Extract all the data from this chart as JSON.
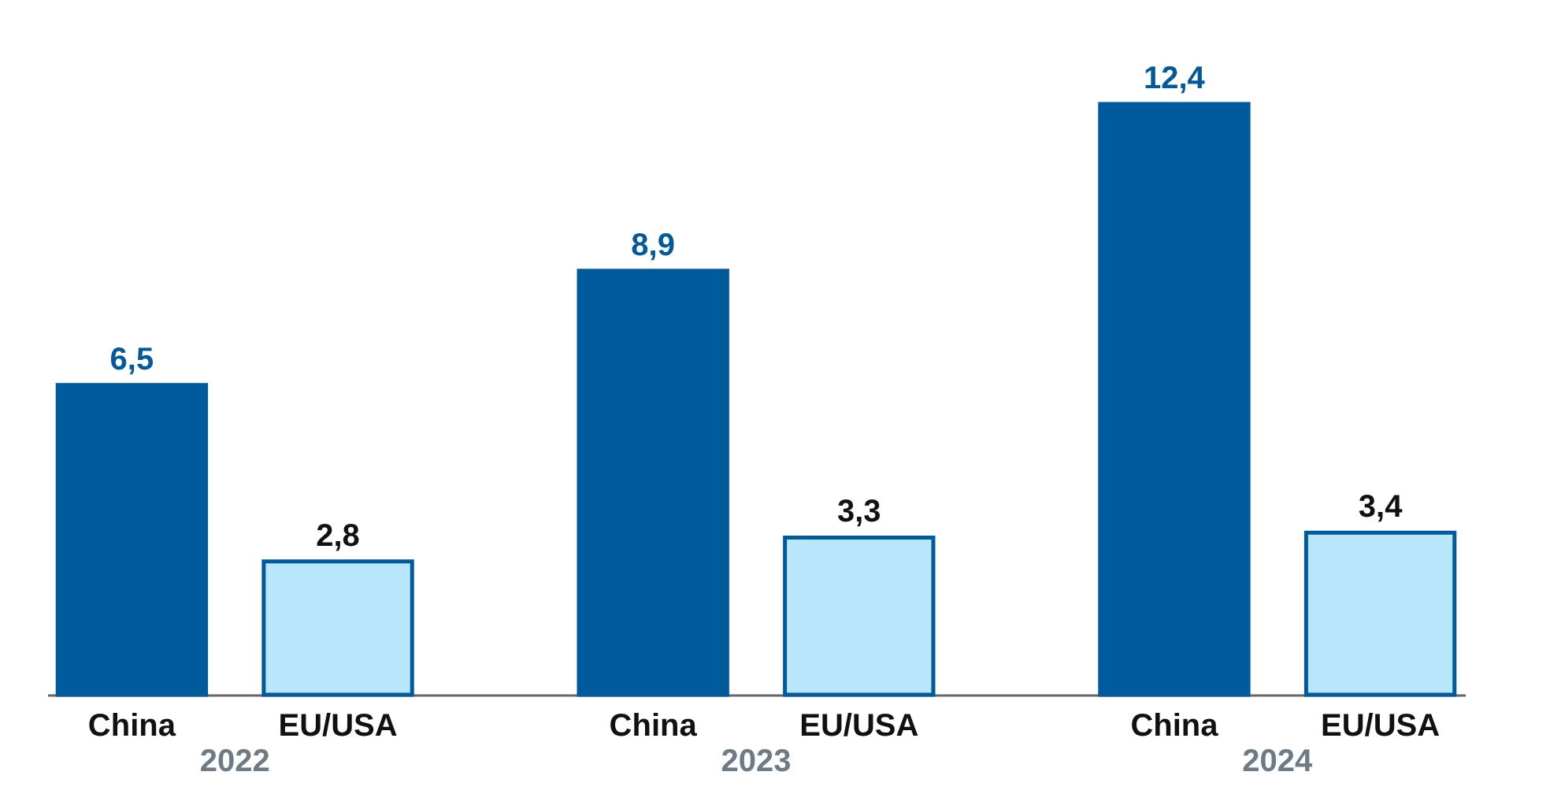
{
  "chart_data": {
    "type": "bar",
    "categories": [
      "2022",
      "2023",
      "2024"
    ],
    "series": [
      {
        "name": "China",
        "color": "#005a9c",
        "values": [
          6.5,
          8.9,
          12.4
        ],
        "value_labels": [
          "6,5",
          "8,9",
          "12,4"
        ]
      },
      {
        "name": "EU/USA",
        "color": "#b8e6fb",
        "values": [
          2.8,
          3.3,
          3.4
        ],
        "value_labels": [
          "2,8",
          "3,3",
          "3,4"
        ]
      }
    ]
  }
}
